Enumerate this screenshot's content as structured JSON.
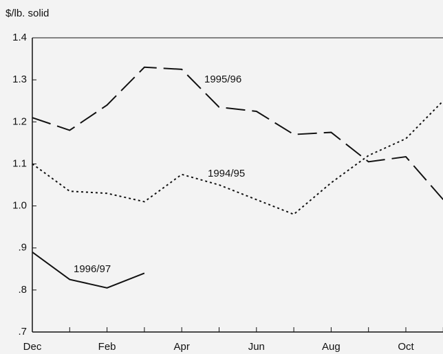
{
  "chart_data": {
    "type": "line",
    "ylabel": "$/lb. solid",
    "categories": [
      "Dec",
      null,
      "Feb",
      null,
      "Apr",
      null,
      "Jun",
      null,
      "Aug",
      null,
      "Oct",
      null
    ],
    "series": [
      {
        "name": "1995/96",
        "color": "#111111",
        "style": "dashed",
        "values": [
          1.21,
          1.18,
          1.24,
          1.33,
          1.325,
          1.235,
          1.225,
          1.17,
          1.175,
          1.105,
          1.117,
          1.015
        ]
      },
      {
        "name": "1994/95",
        "color": "#111111",
        "style": "dotted",
        "values": [
          1.1,
          1.035,
          1.03,
          1.01,
          1.075,
          1.05,
          1.015,
          0.98,
          1.055,
          1.12,
          1.16,
          1.25
        ]
      },
      {
        "name": "1996/97",
        "color": "#111111",
        "style": "solid",
        "values": [
          0.89,
          0.825,
          0.805,
          0.84,
          null,
          null,
          null,
          null,
          null,
          null,
          null,
          null
        ]
      }
    ],
    "ylim": [
      0.7,
      1.4
    ],
    "yticks": [
      {
        "value": 0.7,
        "label": ".7"
      },
      {
        "value": 0.8,
        "label": ".8"
      },
      {
        "value": 0.9,
        "label": ".9"
      },
      {
        "value": 1.0,
        "label": "1.0"
      },
      1.1,
      1.2,
      1.3,
      1.4
    ],
    "grid": false
  }
}
